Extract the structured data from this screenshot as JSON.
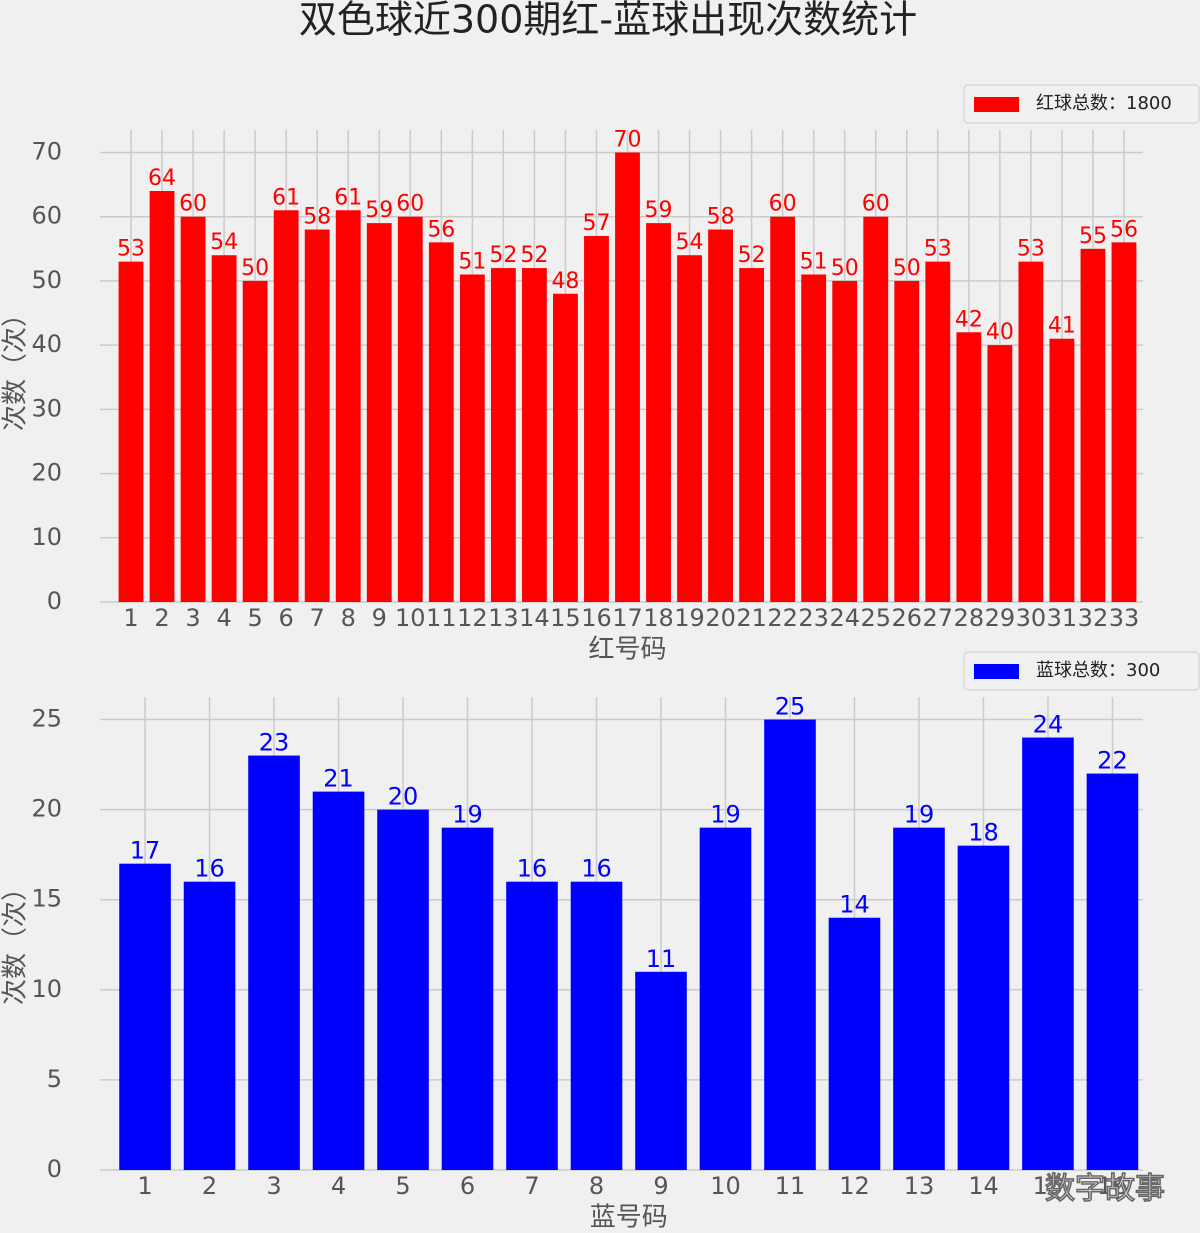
{
  "title": "双色球近300期红-蓝球出现次数统计",
  "watermark": "数字故事",
  "chart_data": [
    {
      "type": "bar",
      "xlabel": "红号码",
      "ylabel": "次数（次）",
      "categories": [
        "1",
        "2",
        "3",
        "4",
        "5",
        "6",
        "7",
        "8",
        "9",
        "10",
        "11",
        "12",
        "13",
        "14",
        "15",
        "16",
        "17",
        "18",
        "19",
        "20",
        "21",
        "22",
        "23",
        "24",
        "25",
        "26",
        "27",
        "28",
        "29",
        "30",
        "31",
        "32",
        "33"
      ],
      "series": [
        {
          "name": "红球总数：1800",
          "color": "#ff0000",
          "values": [
            53,
            64,
            60,
            54,
            50,
            61,
            58,
            61,
            59,
            60,
            56,
            51,
            52,
            52,
            48,
            57,
            70,
            59,
            54,
            58,
            52,
            60,
            51,
            50,
            60,
            50,
            53,
            42,
            40,
            53,
            41,
            55,
            56
          ]
        }
      ],
      "ylim": [
        0,
        73.5
      ],
      "yticks": [
        0,
        10,
        20,
        30,
        40,
        50,
        60,
        70
      ],
      "grid": true,
      "legend": "upper right"
    },
    {
      "type": "bar",
      "xlabel": "蓝号码",
      "ylabel": "次数（次）",
      "categories": [
        "1",
        "2",
        "3",
        "4",
        "5",
        "6",
        "7",
        "8",
        "9",
        "10",
        "11",
        "12",
        "13",
        "14",
        "15",
        "16"
      ],
      "series": [
        {
          "name": "蓝球总数：300",
          "color": "#0000ff",
          "values": [
            17,
            16,
            23,
            21,
            20,
            19,
            16,
            16,
            11,
            19,
            25,
            14,
            19,
            18,
            24,
            22
          ]
        }
      ],
      "ylim": [
        0,
        26.25
      ],
      "yticks": [
        0,
        5,
        10,
        15,
        20,
        25
      ],
      "grid": true,
      "legend": "upper right"
    }
  ]
}
